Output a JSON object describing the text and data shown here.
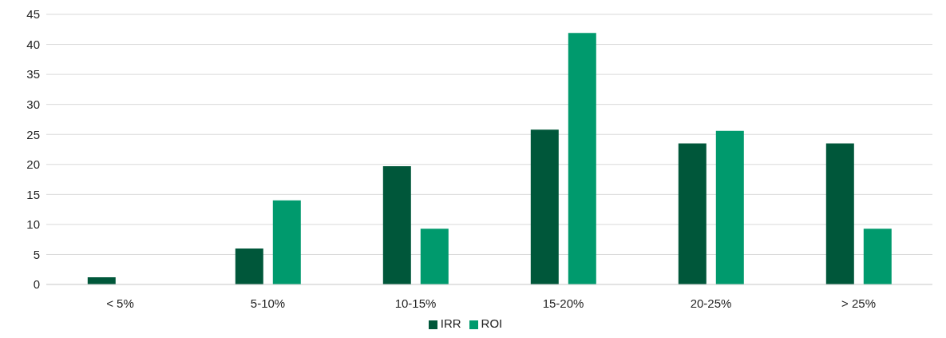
{
  "chart_data": {
    "type": "bar",
    "categories": [
      "< 5%",
      "5-10%",
      "10-15%",
      "15-20%",
      "20-25%",
      "> 25%"
    ],
    "series": [
      {
        "name": "IRR",
        "color": "#00573a",
        "values": [
          1.2,
          6,
          19.7,
          25.8,
          23.5,
          23.5
        ]
      },
      {
        "name": "ROI",
        "color": "#009a6d",
        "values": [
          0,
          14,
          9.3,
          41.9,
          25.6,
          9.3
        ]
      }
    ],
    "ylim": [
      0,
      45
    ],
    "yticks": [
      0,
      5,
      10,
      15,
      20,
      25,
      30,
      35,
      40,
      45
    ],
    "grid": "y",
    "legend": "bottom"
  }
}
